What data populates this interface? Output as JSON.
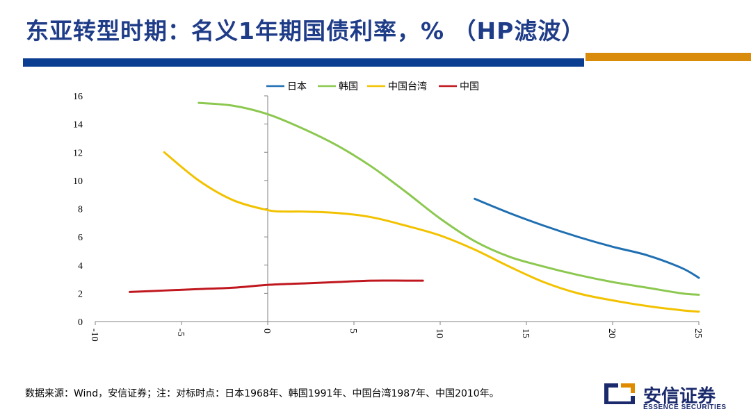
{
  "title": "东亚转型时期：名义1年期国债利率，%  （HP滤波）",
  "source_note": "数据来源：Wind，安信证券；注：对标时点：日本1968年、韩国1991年、中国台湾1987年、中国2010年。",
  "logo": {
    "name_cn": "安信证券",
    "name_en": "ESSENCE SECURITIES"
  },
  "colors": {
    "title": "#1f3c88",
    "bar_blue": "#0b3d91",
    "bar_orange": "#d98b0b",
    "logo_blue": "#1a2a6c",
    "logo_orange": "#e08a00"
  },
  "chart_data": {
    "type": "line",
    "title": "",
    "xlabel": "",
    "ylabel": "",
    "xlim": [
      -10,
      25
    ],
    "ylim": [
      0,
      16
    ],
    "x_ticks": [
      -10,
      -5,
      0,
      5,
      10,
      15,
      20,
      25
    ],
    "y_ticks": [
      0,
      2,
      4,
      6,
      8,
      10,
      12,
      14,
      16
    ],
    "grid": false,
    "legend_position": "top",
    "series": [
      {
        "name": "日本",
        "color": "#1f6fb2",
        "x": [
          12,
          14,
          16,
          18,
          20,
          22,
          24,
          25
        ],
        "y": [
          8.7,
          7.7,
          6.8,
          6.0,
          5.3,
          4.7,
          3.8,
          3.1
        ]
      },
      {
        "name": "韩国",
        "color": "#8cc850",
        "x": [
          -4,
          -2,
          0,
          2,
          4,
          6,
          8,
          10,
          12,
          14,
          16,
          18,
          20,
          22,
          24,
          25
        ],
        "y": [
          15.5,
          15.3,
          14.7,
          13.7,
          12.5,
          11.0,
          9.2,
          7.3,
          5.7,
          4.6,
          3.9,
          3.3,
          2.8,
          2.4,
          2.0,
          1.9
        ]
      },
      {
        "name": "中国台湾",
        "color": "#f2c200",
        "x": [
          -6,
          -4,
          -2,
          0,
          1,
          2,
          4,
          6,
          8,
          10,
          12,
          14,
          16,
          18,
          20,
          22,
          24,
          25
        ],
        "y": [
          12.0,
          10.0,
          8.6,
          7.9,
          7.8,
          7.8,
          7.7,
          7.4,
          6.8,
          6.1,
          5.1,
          3.9,
          2.8,
          2.0,
          1.5,
          1.1,
          0.8,
          0.7
        ]
      },
      {
        "name": "中国",
        "color": "#c0171e",
        "x": [
          -8,
          -6,
          -4,
          -2,
          0,
          2,
          4,
          6,
          8,
          9
        ],
        "y": [
          2.1,
          2.2,
          2.3,
          2.4,
          2.6,
          2.7,
          2.8,
          2.9,
          2.9,
          2.9
        ]
      }
    ]
  }
}
